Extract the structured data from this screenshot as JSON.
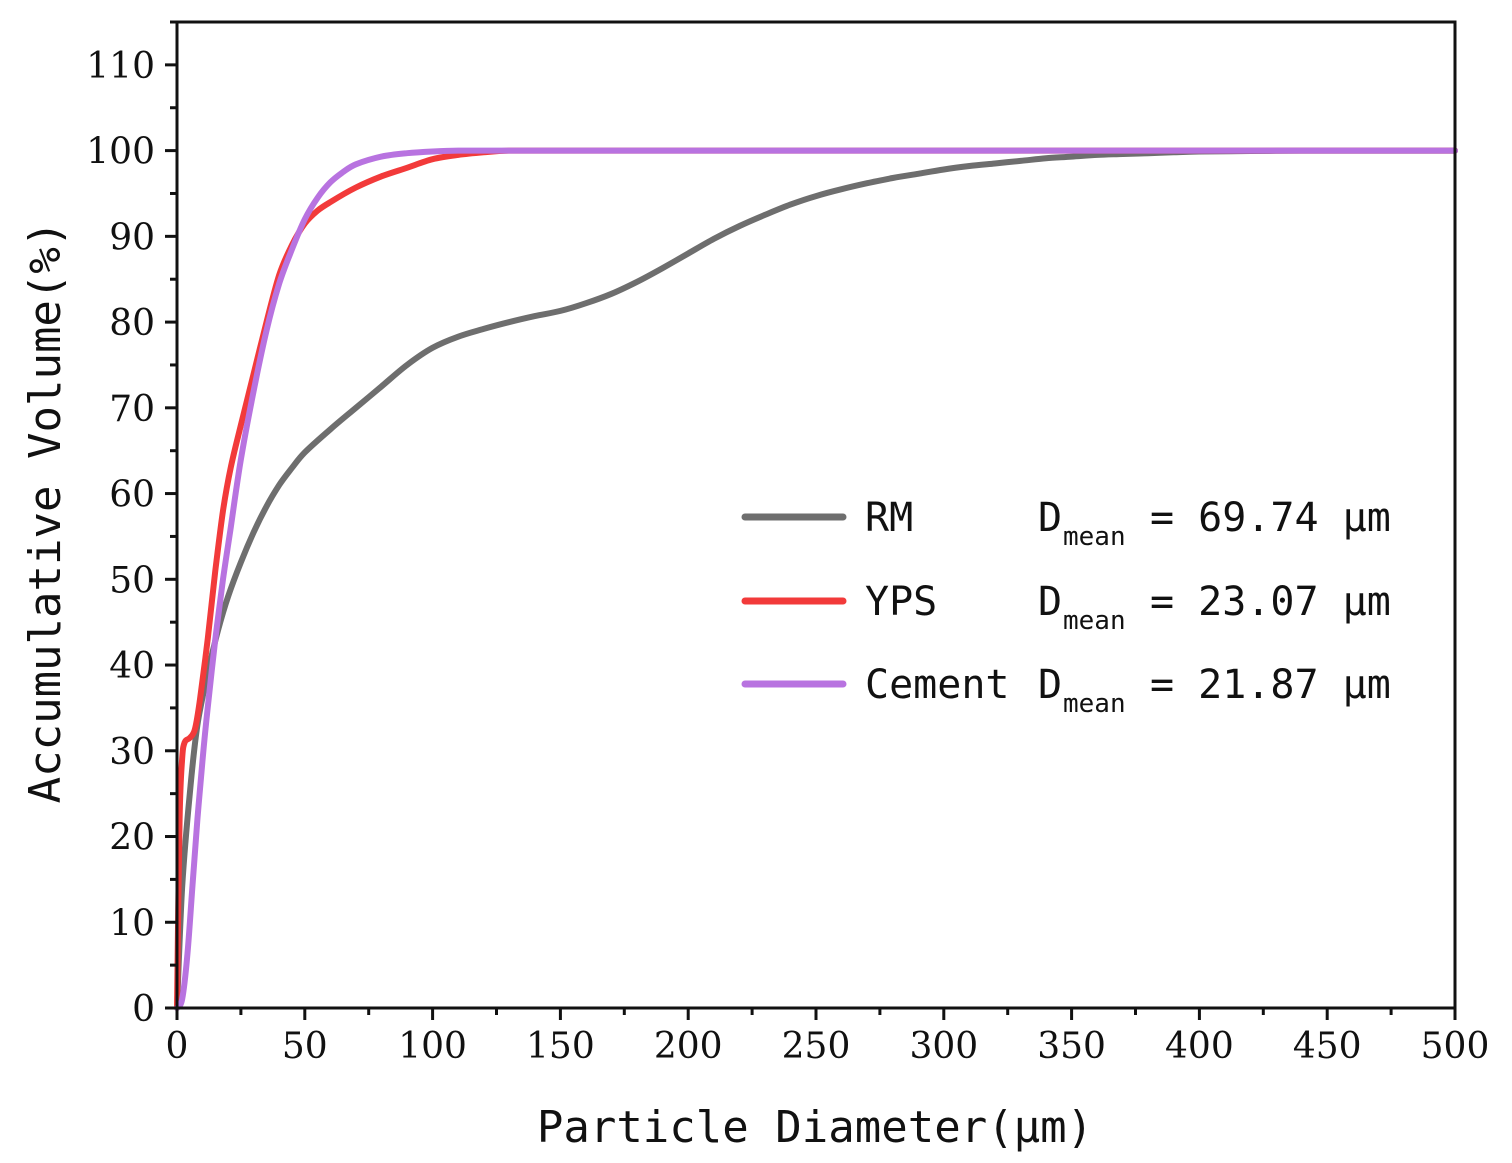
{
  "chart_data": {
    "type": "line",
    "title": "",
    "xlabel": "Particle Diameter(μm)",
    "ylabel": "Accumulative Volume(%)",
    "xlim": [
      0,
      500
    ],
    "ylim": [
      0,
      115
    ],
    "xticks": [
      0,
      50,
      100,
      150,
      200,
      250,
      300,
      350,
      400,
      450,
      500
    ],
    "yticks": [
      0,
      10,
      20,
      30,
      40,
      50,
      60,
      70,
      80,
      90,
      100,
      110
    ],
    "grid": false,
    "legend_position": "center-right",
    "series": [
      {
        "name": "RM",
        "color": "#6e6e6e",
        "stat_label": "D",
        "stat_sub": "mean",
        "stat_value": "= 69.74 μm",
        "x": [
          0,
          2,
          5,
          8,
          12,
          16,
          20,
          25,
          30,
          35,
          40,
          45,
          50,
          60,
          70,
          80,
          90,
          100,
          110,
          120,
          130,
          140,
          150,
          160,
          170,
          180,
          190,
          200,
          210,
          220,
          230,
          240,
          250,
          260,
          270,
          280,
          290,
          300,
          310,
          320,
          330,
          340,
          350,
          360,
          370,
          380,
          390,
          400,
          420,
          440,
          460,
          480,
          500
        ],
        "y": [
          0,
          14,
          25,
          33,
          39,
          44,
          48,
          52,
          55.5,
          58.5,
          61,
          63,
          64.8,
          67.5,
          70,
          72.5,
          75,
          77,
          78.3,
          79.2,
          80,
          80.7,
          81.3,
          82.2,
          83.3,
          84.7,
          86.3,
          88,
          89.7,
          91.2,
          92.5,
          93.7,
          94.7,
          95.5,
          96.2,
          96.8,
          97.3,
          97.8,
          98.2,
          98.5,
          98.8,
          99.1,
          99.3,
          99.5,
          99.6,
          99.7,
          99.8,
          99.9,
          99.95,
          100,
          100,
          100,
          100
        ]
      },
      {
        "name": "YPS",
        "color": "#f23a3a",
        "stat_label": "D",
        "stat_sub": "mean",
        "stat_value": "= 23.07 μm",
        "x": [
          0,
          1,
          2,
          3,
          5,
          7,
          9,
          12,
          15,
          18,
          21,
          25,
          30,
          35,
          40,
          45,
          50,
          55,
          60,
          70,
          80,
          90,
          100,
          110,
          120,
          130,
          150,
          200,
          300,
          400,
          500
        ],
        "y": [
          0,
          22,
          29,
          31,
          31.5,
          32.5,
          36,
          43,
          51,
          58,
          63,
          68,
          74,
          80,
          85.5,
          89,
          91.5,
          93,
          94,
          95.7,
          97,
          98,
          99,
          99.5,
          99.8,
          100,
          100,
          100,
          100,
          100,
          100
        ]
      },
      {
        "name": "Cement",
        "color": "#b873e0",
        "stat_label": "D",
        "stat_sub": "mean",
        "stat_value": "= 21.87 μm",
        "x": [
          0,
          2,
          4,
          6,
          8,
          10,
          12,
          15,
          18,
          21,
          25,
          30,
          35,
          40,
          45,
          50,
          55,
          60,
          65,
          70,
          80,
          90,
          100,
          110,
          120,
          150,
          200,
          300,
          400,
          500
        ],
        "y": [
          0,
          1,
          6,
          14,
          22,
          29,
          35,
          43,
          50,
          56,
          64,
          72,
          79,
          84.5,
          88.5,
          92,
          94.5,
          96.3,
          97.5,
          98.4,
          99.3,
          99.7,
          99.9,
          100,
          100,
          100,
          100,
          100,
          100,
          100
        ]
      }
    ]
  }
}
